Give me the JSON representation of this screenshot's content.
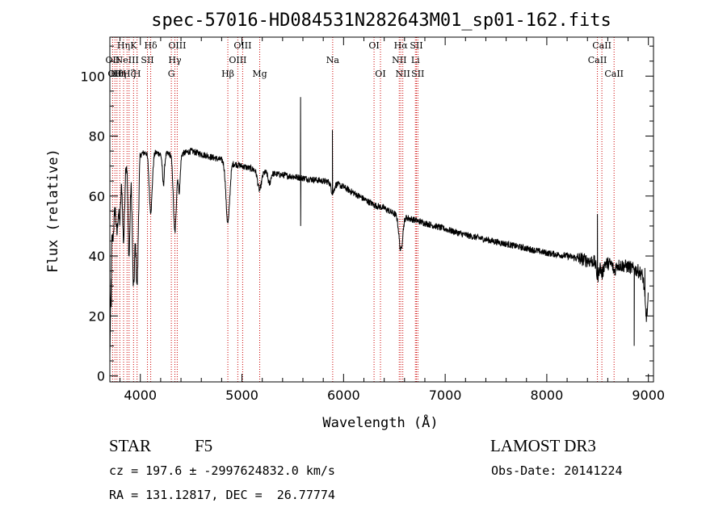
{
  "chart_data": {
    "type": "line",
    "title": "spec-57016-HD084531N282643M01_sp01-162.fits",
    "xlabel": "Wavelength (Å)",
    "ylabel": "Flux (relative)",
    "xlim": [
      3700,
      9050
    ],
    "ylim": [
      -2,
      113
    ],
    "xticks": [
      4000,
      5000,
      6000,
      7000,
      8000,
      9000
    ],
    "yticks": [
      0,
      20,
      40,
      60,
      80,
      100
    ],
    "line_color": "#000000",
    "marker_color": "#cc0000",
    "continuum": {
      "x": [
        3700,
        3720,
        3760,
        3800,
        3850,
        3900,
        3950,
        4000,
        4100,
        4200,
        4300,
        4400,
        4500,
        4600,
        4700,
        4800,
        4900,
        5000,
        5100,
        5200,
        5300,
        5400,
        5500,
        5600,
        5700,
        5800,
        5900,
        6000,
        6100,
        6200,
        6300,
        6400,
        6500,
        6600,
        6700,
        6800,
        6900,
        7000,
        7200,
        7400,
        7600,
        7800,
        8000,
        8200,
        8400,
        8600,
        8800,
        8900,
        9000
      ],
      "y": [
        8,
        55,
        65,
        70,
        72,
        73,
        73,
        74,
        75,
        74,
        74,
        74,
        75,
        74,
        73,
        72,
        71,
        70,
        69,
        68,
        67.5,
        67,
        66.5,
        66,
        65.5,
        65,
        64.5,
        63,
        61,
        59,
        57,
        56,
        54,
        53,
        52,
        51,
        50,
        49,
        47,
        45.5,
        44,
        42.5,
        41,
        40,
        38.5,
        37.5,
        36.5,
        35,
        32
      ]
    },
    "features": [
      {
        "x": 3730,
        "y": 46,
        "w": 15
      },
      {
        "x": 3770,
        "y": 48,
        "w": 10
      },
      {
        "x": 3798,
        "y": 52,
        "w": 10
      },
      {
        "x": 3835,
        "y": 45,
        "w": 10
      },
      {
        "x": 3889,
        "y": 40,
        "w": 10
      },
      {
        "x": 3933,
        "y": 30,
        "w": 12
      },
      {
        "x": 3968,
        "y": 31,
        "w": 12
      },
      {
        "x": 4102,
        "y": 55,
        "w": 15
      },
      {
        "x": 4227,
        "y": 64,
        "w": 10
      },
      {
        "x": 4340,
        "y": 48,
        "w": 15
      },
      {
        "x": 4383,
        "y": 62,
        "w": 10
      },
      {
        "x": 4861,
        "y": 51,
        "w": 18
      },
      {
        "x": 5173,
        "y": 62,
        "w": 18
      },
      {
        "x": 5270,
        "y": 64,
        "w": 12
      },
      {
        "x": 5893,
        "y": 61,
        "w": 15
      },
      {
        "x": 6563,
        "y": 42,
        "w": 18
      },
      {
        "x": 8500,
        "y": 33,
        "w": 12
      },
      {
        "x": 8544,
        "y": 34,
        "w": 12
      },
      {
        "x": 8664,
        "y": 35,
        "w": 12
      },
      {
        "x": 8980,
        "y": 20,
        "w": 15
      }
    ],
    "spikes": [
      {
        "x": 5577,
        "y": 93
      },
      {
        "x": 5578,
        "y": 50
      },
      {
        "x": 5890,
        "y": 82
      },
      {
        "x": 8498,
        "y": 54
      },
      {
        "x": 3714,
        "y": 23
      },
      {
        "x": 8860,
        "y": 10
      },
      {
        "x": 8965,
        "y": 36
      }
    ],
    "lines": [
      {
        "x": 3727,
        "label": "OII",
        "row": 2
      },
      {
        "x": 3750,
        "label": "OII",
        "row": 3
      },
      {
        "x": 3770,
        "label": "Hθ",
        "row": 3
      },
      {
        "x": 3798,
        "label": "Hη",
        "row": 3
      },
      {
        "x": 3835,
        "label": "Hη",
        "row": 1
      },
      {
        "x": 3869,
        "label": "NeIII",
        "row": 2
      },
      {
        "x": 3889,
        "label": "Hζ",
        "row": 3
      },
      {
        "x": 3933,
        "label": "K",
        "row": 1
      },
      {
        "x": 3968,
        "label": "H",
        "row": 3
      },
      {
        "x": 4070,
        "label": "SII",
        "row": 2
      },
      {
        "x": 4102,
        "label": "Hδ",
        "row": 1
      },
      {
        "x": 4305,
        "label": "G",
        "row": 3
      },
      {
        "x": 4340,
        "label": "Hγ",
        "row": 2
      },
      {
        "x": 4363,
        "label": "OIII",
        "row": 1
      },
      {
        "x": 4861,
        "label": "Hβ",
        "row": 3
      },
      {
        "x": 4959,
        "label": "OIII",
        "row": 2
      },
      {
        "x": 5007,
        "label": "OIII",
        "row": 1
      },
      {
        "x": 5175,
        "label": "Mg",
        "row": 3
      },
      {
        "x": 5893,
        "label": "Na",
        "row": 2
      },
      {
        "x": 6300,
        "label": "OI",
        "row": 1
      },
      {
        "x": 6363,
        "label": "OI",
        "row": 3
      },
      {
        "x": 6548,
        "label": "NII",
        "row": 2
      },
      {
        "x": 6563,
        "label": "Hα",
        "row": 1
      },
      {
        "x": 6583,
        "label": "NII",
        "row": 3
      },
      {
        "x": 6707,
        "label": "Li",
        "row": 2
      },
      {
        "x": 6717,
        "label": "SII",
        "row": 1
      },
      {
        "x": 6731,
        "label": "SII",
        "row": 3
      },
      {
        "x": 8498,
        "label": "CaII",
        "row": 2
      },
      {
        "x": 8542,
        "label": "CaII",
        "row": 1
      },
      {
        "x": 8662,
        "label": "CaII",
        "row": 3
      }
    ]
  },
  "info": {
    "class_label": "STAR",
    "subclass": "F5",
    "survey": "LAMOST DR3",
    "cz_line": "cz = 197.6 ± -2997624832.0 km/s",
    "obs_date": "Obs-Date: 20141224",
    "radec_line": "RA = 131.12817, DEC =  26.77774"
  }
}
